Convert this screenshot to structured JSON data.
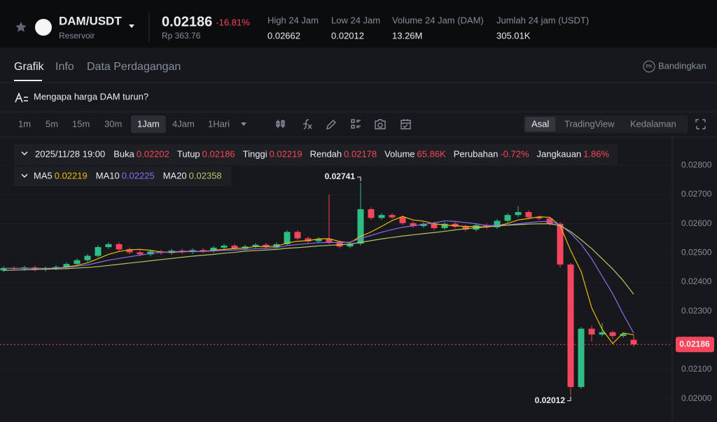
{
  "header": {
    "pair": "DAM/USDT",
    "market": "Reservoir",
    "price": "0.02186",
    "change": "-16.81%",
    "fiat": "Rp 363.76",
    "stats": [
      {
        "label": "High 24 Jam",
        "value": "0.02662"
      },
      {
        "label": "Low 24 Jam",
        "value": "0.02012"
      },
      {
        "label": "Volume 24 Jam (DAM)",
        "value": "13.26M"
      },
      {
        "label": "Jumlah 24 jam (USDT)",
        "value": "305.01K"
      }
    ]
  },
  "tabs": [
    "Grafik",
    "Info",
    "Data Perdagangan"
  ],
  "compare": {
    "icon": "PK",
    "label": "Bandingkan"
  },
  "banner": "Mengapa harga DAM turun?",
  "toolbar": {
    "intervals": [
      "1m",
      "5m",
      "15m",
      "30m",
      "1Jam",
      "4Jam",
      "1Hari"
    ],
    "views": [
      "Asal",
      "TradingView",
      "Kedalaman"
    ]
  },
  "info": {
    "date": "2025/11/28 19:00",
    "items": [
      {
        "label": "Buka",
        "value": "0.02202"
      },
      {
        "label": "Tutup",
        "value": "0.02186"
      },
      {
        "label": "Tinggi",
        "value": "0.02219"
      },
      {
        "label": "Rendah",
        "value": "0.02178"
      },
      {
        "label": "Volume",
        "value": "65.86K"
      },
      {
        "label": "Perubahan",
        "value": "-0.72%"
      },
      {
        "label": "Jangkauan",
        "value": "1.86%"
      }
    ],
    "ma_values": [
      "0.02219",
      "0.02225",
      "0.02358"
    ]
  },
  "chart_data": {
    "type": "candlestick",
    "up_color": "#2ebd85",
    "down_color": "#f6465d",
    "open": [
      0.0244,
      0.02448,
      0.02445,
      0.0245,
      0.02443,
      0.02447,
      0.02452,
      0.02462,
      0.02475,
      0.0249,
      0.0252,
      0.0253,
      0.02512,
      0.02502,
      0.02495,
      0.02505,
      0.025,
      0.02508,
      0.02503,
      0.0251,
      0.02506,
      0.02518,
      0.02525,
      0.02515,
      0.02522,
      0.02528,
      0.0252,
      0.0253,
      0.02572,
      0.0255,
      0.0254,
      0.02548,
      0.02535,
      0.02522,
      0.02532,
      0.0265,
      0.0262,
      0.0263,
      0.02622,
      0.02602,
      0.02592,
      0.026,
      0.02585,
      0.026,
      0.0259,
      0.0258,
      0.02595,
      0.02588,
      0.0261,
      0.0263,
      0.0264,
      0.02622,
      0.02618,
      0.026,
      0.0246,
      0.0204,
      0.0224,
      0.0222,
      0.02228,
      0.02215,
      0.02202
    ],
    "high": [
      0.02454,
      0.02454,
      0.02456,
      0.02456,
      0.02453,
      0.02458,
      0.02468,
      0.02481,
      0.02496,
      0.02526,
      0.02536,
      0.02536,
      0.02518,
      0.02508,
      0.02511,
      0.02511,
      0.02514,
      0.02514,
      0.02516,
      0.02516,
      0.02524,
      0.02531,
      0.02531,
      0.02528,
      0.02534,
      0.02534,
      0.02536,
      0.02578,
      0.02578,
      0.02556,
      0.02554,
      0.027,
      0.02541,
      0.02538,
      0.02741,
      0.02656,
      0.02636,
      0.02636,
      0.02628,
      0.02608,
      0.02606,
      0.02606,
      0.02606,
      0.02606,
      0.02596,
      0.02601,
      0.02601,
      0.02616,
      0.02636,
      0.0266,
      0.02646,
      0.02628,
      0.02624,
      0.02606,
      0.02466,
      0.02246,
      0.0225,
      0.0226,
      0.02234,
      0.02228,
      0.02219
    ],
    "low": [
      0.02434,
      0.02439,
      0.02439,
      0.02437,
      0.02437,
      0.02441,
      0.02446,
      0.02456,
      0.02469,
      0.02484,
      0.02514,
      0.02506,
      0.02496,
      0.02489,
      0.02489,
      0.02494,
      0.02494,
      0.02497,
      0.02497,
      0.025,
      0.025,
      0.02512,
      0.02509,
      0.02509,
      0.02516,
      0.02514,
      0.02514,
      0.02524,
      0.02544,
      0.02534,
      0.02534,
      0.02529,
      0.02516,
      0.02516,
      0.02526,
      0.02614,
      0.02614,
      0.02616,
      0.02596,
      0.02586,
      0.02586,
      0.02579,
      0.02579,
      0.02584,
      0.02574,
      0.02574,
      0.02582,
      0.02582,
      0.02604,
      0.02624,
      0.02616,
      0.02612,
      0.02594,
      0.0245,
      0.02012,
      0.02034,
      0.02196,
      0.02214,
      0.02205,
      0.02209,
      0.02178
    ],
    "close": [
      0.02448,
      0.02445,
      0.0245,
      0.02443,
      0.02447,
      0.02452,
      0.02462,
      0.02475,
      0.0249,
      0.0252,
      0.0253,
      0.02512,
      0.02502,
      0.02495,
      0.02505,
      0.025,
      0.02508,
      0.02503,
      0.0251,
      0.02506,
      0.02518,
      0.02525,
      0.02515,
      0.02522,
      0.02528,
      0.0252,
      0.0253,
      0.02572,
      0.0255,
      0.0254,
      0.02548,
      0.02535,
      0.02522,
      0.02532,
      0.0265,
      0.0262,
      0.0263,
      0.02622,
      0.02602,
      0.02592,
      0.026,
      0.02585,
      0.026,
      0.0259,
      0.0258,
      0.02595,
      0.02588,
      0.0261,
      0.0263,
      0.0264,
      0.02622,
      0.02618,
      0.026,
      0.0246,
      0.0204,
      0.0224,
      0.0222,
      0.02228,
      0.02215,
      0.02222,
      0.02186
    ],
    "series": [
      {
        "name": "MA5",
        "color": "#f0b90b",
        "values": [
          0.02447,
          0.02447,
          0.02447,
          0.02447,
          0.02447,
          0.02447,
          0.02452,
          0.02457,
          0.02466,
          0.0248,
          0.02495,
          0.02505,
          0.02511,
          0.02512,
          0.02509,
          0.02503,
          0.02502,
          0.02504,
          0.02505,
          0.02505,
          0.02509,
          0.02512,
          0.02515,
          0.02517,
          0.02522,
          0.02522,
          0.02523,
          0.02534,
          0.0254,
          0.02542,
          0.02548,
          0.02549,
          0.02539,
          0.02535,
          0.02557,
          0.02572,
          0.02591,
          0.02611,
          0.02625,
          0.02613,
          0.02609,
          0.026,
          0.02596,
          0.02593,
          0.02591,
          0.0259,
          0.02589,
          0.02593,
          0.02601,
          0.02613,
          0.02618,
          0.02624,
          0.02622,
          0.02594,
          0.02508,
          0.02436,
          0.02312,
          0.02238,
          0.02189,
          0.02225,
          0.02219
        ]
      },
      {
        "name": "MA10",
        "color": "#8b6cf0",
        "values": [
          0.02447,
          0.02447,
          0.02447,
          0.02447,
          0.02447,
          0.02448,
          0.0245,
          0.02454,
          0.02459,
          0.02467,
          0.02475,
          0.02481,
          0.02487,
          0.02492,
          0.02498,
          0.02502,
          0.02504,
          0.02505,
          0.02506,
          0.02505,
          0.02507,
          0.02509,
          0.0251,
          0.02512,
          0.02514,
          0.02516,
          0.02518,
          0.02525,
          0.02529,
          0.02532,
          0.02535,
          0.02536,
          0.02536,
          0.02537,
          0.0255,
          0.0256,
          0.02571,
          0.0258,
          0.02588,
          0.02593,
          0.02598,
          0.02603,
          0.0261,
          0.02608,
          0.02604,
          0.026,
          0.02594,
          0.02594,
          0.02596,
          0.026,
          0.02604,
          0.02607,
          0.02608,
          0.02597,
          0.02567,
          0.0253,
          0.0248,
          0.0242,
          0.0236,
          0.0229,
          0.02225
        ]
      },
      {
        "name": "MA20",
        "color": "#b7c46a",
        "values": [
          0.0244,
          0.02441,
          0.02442,
          0.02443,
          0.02444,
          0.02445,
          0.02446,
          0.02448,
          0.0245,
          0.02453,
          0.02457,
          0.02461,
          0.02465,
          0.02469,
          0.02473,
          0.02477,
          0.02481,
          0.02485,
          0.02489,
          0.02492,
          0.02495,
          0.02499,
          0.02502,
          0.02506,
          0.02508,
          0.0251,
          0.02512,
          0.02516,
          0.02518,
          0.02521,
          0.02524,
          0.02526,
          0.02528,
          0.0253,
          0.02536,
          0.02542,
          0.02548,
          0.02553,
          0.02558,
          0.02562,
          0.02566,
          0.0257,
          0.02574,
          0.02579,
          0.02583,
          0.02586,
          0.02589,
          0.02592,
          0.02595,
          0.02597,
          0.02599,
          0.026,
          0.026,
          0.02594,
          0.02573,
          0.02545,
          0.02515,
          0.0248,
          0.02445,
          0.02405,
          0.02358
        ]
      }
    ],
    "ylim": [
      0.0192,
      0.02897
    ],
    "yticks": [
      {
        "value": 0.02,
        "label": "0.02000"
      },
      {
        "value": 0.021,
        "label": "0.02100"
      },
      {
        "value": 0.022,
        "label": "0.02200"
      },
      {
        "value": 0.023,
        "label": "0.02300"
      },
      {
        "value": 0.024,
        "label": "0.02400"
      },
      {
        "value": 0.025,
        "label": "0.02500"
      },
      {
        "value": 0.026,
        "label": "0.02600"
      },
      {
        "value": 0.027,
        "label": "0.02700"
      },
      {
        "value": 0.028,
        "label": "0.02800"
      }
    ],
    "last_price": {
      "value": 0.02186,
      "label": "0.02186"
    },
    "annotations": [
      {
        "value": 0.02741,
        "label": "0.02741"
      },
      {
        "value": 0.02012,
        "label": "0.02012"
      }
    ]
  }
}
